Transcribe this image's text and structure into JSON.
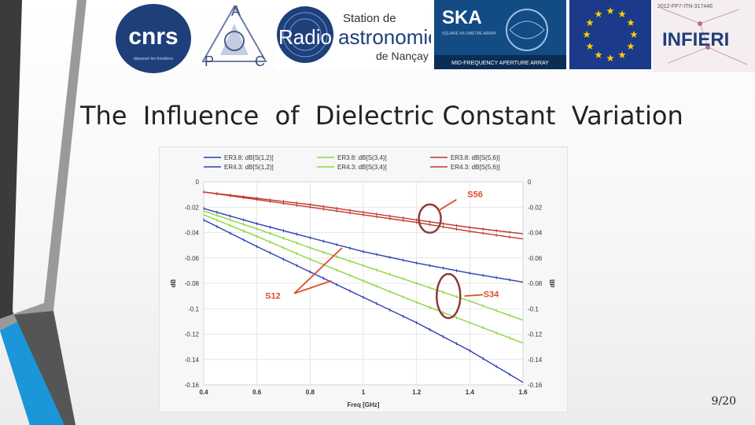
{
  "slide": {
    "title": "The  Influence  of  Dielectric Constant  Variation",
    "page_number": "9/20"
  },
  "logos": {
    "cnrs": {
      "text": "cnrs",
      "subtext": "dépasser les frontières"
    },
    "apc": {
      "letters": [
        "A",
        "P",
        "C"
      ]
    },
    "radio": {
      "line1": "Station de",
      "word1": "Radio",
      "word2": "astronomie",
      "line3": "de Nançay"
    },
    "ska": {
      "text": "SKA",
      "subtext": "SQUARE KILOMETRE ARRAY",
      "caption": "MID-FREQUENCY APERTURE ARRAY"
    },
    "eu_flag": {
      "stars": 12
    },
    "infieri": {
      "text": "INFIERI",
      "grant": "2012-FP7-ITN-317446"
    }
  },
  "colors": {
    "blue": "#2d3fb2",
    "green": "#8ed63f",
    "red": "#c0392b",
    "annotation_red": "#e14a2a",
    "circle": "#8c3a3a",
    "decor_dark": "#3a3a3a",
    "decor_blue": "#1a96d9"
  },
  "chart_data": {
    "type": "line",
    "xlabel": "Freq [GHz]",
    "ylabel": "dB",
    "ylabel_right": "dB",
    "xlim": [
      0.4,
      1.6
    ],
    "ylim": [
      -0.16,
      0
    ],
    "xticks": [
      "0.4",
      "0.6",
      "0.8",
      "1",
      "1.2",
      "1.4",
      "1.6"
    ],
    "yticks": [
      "0",
      "-0.02",
      "-0.04",
      "-0.06",
      "-0.08",
      "-0.1",
      "-0.12",
      "-0.14",
      "-0.16"
    ],
    "grid": true,
    "legend": [
      {
        "label": "ER3.8: dB[S(1,2)]",
        "color": "#2d3fb2"
      },
      {
        "label": "ER3.8: dB[S(3,4)]",
        "color": "#8ed63f"
      },
      {
        "label": "ER3.8: dB[S(5,6)]",
        "color": "#c0392b"
      },
      {
        "label": "ER4.3: dB[S(1,2)]",
        "color": "#2d3fb2"
      },
      {
        "label": "ER4.3: dB[S(3,4)]",
        "color": "#8ed63f"
      },
      {
        "label": "ER4.3: dB[S(5,6)]",
        "color": "#c0392b"
      }
    ],
    "series": [
      {
        "name": "ER3.8: dB[S(1,2)]",
        "color": "#2d3fb2",
        "x": [
          0.4,
          0.6,
          0.8,
          1.0,
          1.2,
          1.4,
          1.6
        ],
        "y": [
          -0.021,
          -0.033,
          -0.044,
          -0.055,
          -0.064,
          -0.072,
          -0.079
        ]
      },
      {
        "name": "ER4.3: dB[S(1,2)]",
        "color": "#2d3fb2",
        "x": [
          0.4,
          0.6,
          0.8,
          1.0,
          1.2,
          1.4,
          1.6
        ],
        "y": [
          -0.03,
          -0.051,
          -0.071,
          -0.091,
          -0.111,
          -0.133,
          -0.158
        ]
      },
      {
        "name": "ER3.8: dB[S(3,4)]",
        "color": "#8ed63f",
        "x": [
          0.4,
          0.6,
          0.8,
          1.0,
          1.2,
          1.4,
          1.6
        ],
        "y": [
          -0.023,
          -0.037,
          -0.052,
          -0.066,
          -0.08,
          -0.094,
          -0.109
        ]
      },
      {
        "name": "ER4.3: dB[S(3,4)]",
        "color": "#8ed63f",
        "x": [
          0.4,
          0.6,
          0.8,
          1.0,
          1.2,
          1.4,
          1.6
        ],
        "y": [
          -0.026,
          -0.043,
          -0.061,
          -0.078,
          -0.095,
          -0.111,
          -0.127
        ]
      },
      {
        "name": "ER3.8: dB[S(5,6)]",
        "color": "#c0392b",
        "x": [
          0.4,
          0.6,
          0.8,
          1.0,
          1.2,
          1.4,
          1.6
        ],
        "y": [
          -0.008,
          -0.013,
          -0.018,
          -0.024,
          -0.03,
          -0.036,
          -0.041
        ]
      },
      {
        "name": "ER4.3: dB[S(5,6)]",
        "color": "#c0392b",
        "x": [
          0.4,
          0.6,
          0.8,
          1.0,
          1.2,
          1.4,
          1.6
        ],
        "y": [
          -0.008,
          -0.014,
          -0.02,
          -0.026,
          -0.032,
          -0.039,
          -0.045
        ]
      }
    ],
    "annotations": [
      {
        "text": "S56",
        "x": 1.42,
        "y": -0.012
      },
      {
        "text": "S34",
        "x": 1.48,
        "y": -0.091
      },
      {
        "text": "S12",
        "x": 0.66,
        "y": -0.092
      }
    ]
  }
}
